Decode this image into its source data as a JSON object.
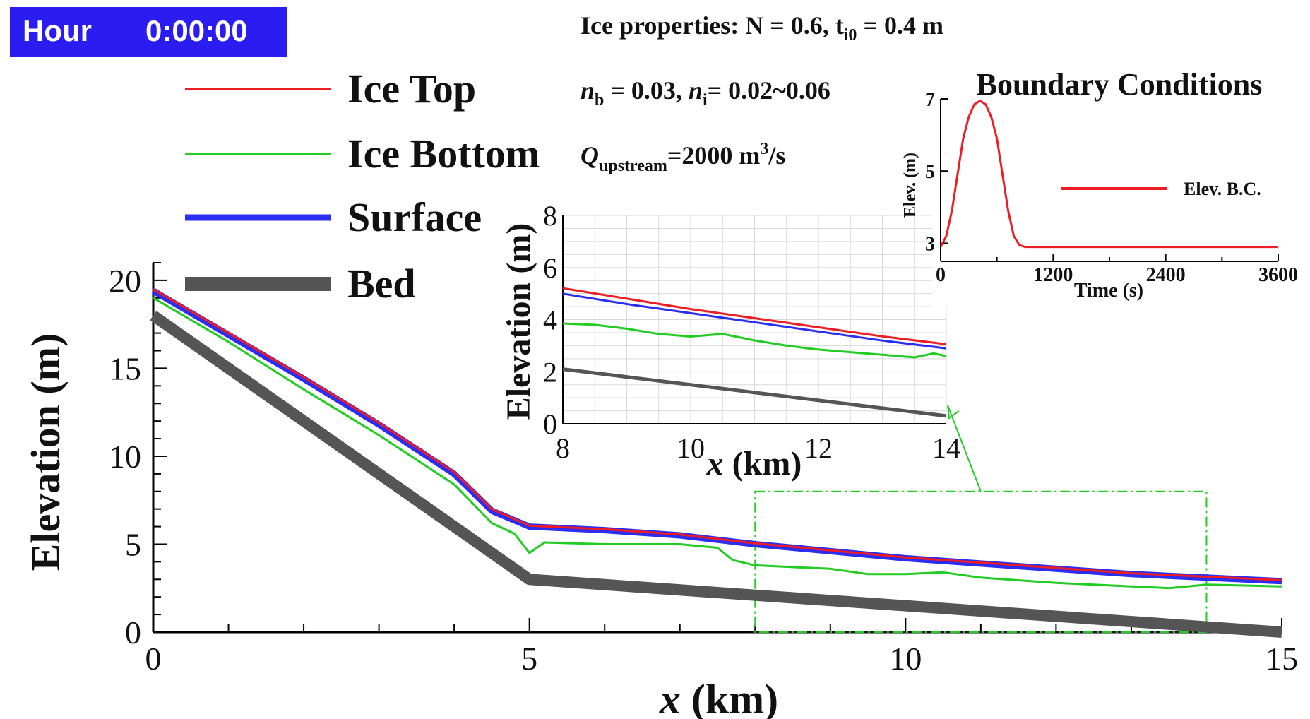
{
  "timer": {
    "label": "Hour",
    "value": "0:00:00",
    "bg_color": "#2b1cf2"
  },
  "annotations": {
    "line1": {
      "pre": "Ice properties: N = 0.6, t",
      "sub": "i0",
      "post": " = 0.4 m"
    },
    "line2": {
      "n1": "n",
      "n1_sub": "b",
      "mid": " = 0.03, ",
      "n2": "n",
      "n2_sub": "i",
      "post": "= 0.02~0.06"
    },
    "line3": {
      "q": "Q",
      "q_sub": "upstream",
      "post": "=2000 m",
      "sup": "3",
      "tail": "/s"
    }
  },
  "legend": [
    {
      "label": "Ice Top",
      "color": "#ee1c24",
      "weight": "thin"
    },
    {
      "label": "Ice Bottom",
      "color": "#22cc22",
      "weight": "thin"
    },
    {
      "label": "Surface",
      "color": "#2b2ef0",
      "weight": "medium"
    },
    {
      "label": "Bed",
      "color": "#555555",
      "weight": "thick"
    }
  ],
  "chart_data": [
    {
      "id": "main",
      "type": "line",
      "xlabel_var": "x",
      "xlabel_unit": " (km)",
      "ylabel": "Elevation (m)",
      "xlim": [
        0,
        15
      ],
      "ylim": [
        0,
        21
      ],
      "xticks": [
        0,
        5,
        10,
        15
      ],
      "yticks": [
        0,
        5,
        10,
        15,
        20
      ],
      "series": [
        {
          "name": "Bed",
          "x": [
            0,
            5,
            15
          ],
          "y": [
            18,
            3,
            0
          ]
        },
        {
          "name": "Surface",
          "x": [
            0,
            1,
            2,
            3,
            4,
            4.5,
            5,
            6,
            7,
            8,
            9,
            10,
            11,
            12,
            13,
            14,
            15
          ],
          "y": [
            19.4,
            16.9,
            14.4,
            11.8,
            9.0,
            6.9,
            6.0,
            5.8,
            5.5,
            5.0,
            4.6,
            4.2,
            3.9,
            3.6,
            3.3,
            3.1,
            2.9
          ]
        },
        {
          "name": "Ice Top",
          "x": [
            0,
            1,
            2,
            3,
            4,
            4.5,
            5,
            6,
            7,
            8,
            9,
            10,
            11,
            12,
            13,
            14,
            15
          ],
          "y": [
            19.5,
            17.0,
            14.5,
            11.9,
            9.1,
            7.0,
            6.05,
            5.85,
            5.55,
            5.05,
            4.65,
            4.25,
            3.95,
            3.65,
            3.35,
            3.15,
            2.95
          ]
        },
        {
          "name": "Ice Bottom",
          "x": [
            0,
            1,
            2,
            3,
            4,
            4.5,
            4.8,
            5.0,
            5.2,
            6,
            7,
            7.5,
            7.7,
            8,
            9,
            9.5,
            10,
            10.5,
            11,
            12,
            13,
            13.5,
            14,
            15
          ],
          "y": [
            19.0,
            16.5,
            13.8,
            11.2,
            8.4,
            6.2,
            5.6,
            4.5,
            5.1,
            5.0,
            5.0,
            4.8,
            4.1,
            3.8,
            3.6,
            3.3,
            3.3,
            3.4,
            3.1,
            2.8,
            2.6,
            2.5,
            2.7,
            2.6
          ]
        }
      ],
      "zoom_box": {
        "x": [
          8,
          14
        ],
        "y": [
          0,
          8
        ]
      }
    },
    {
      "id": "inset",
      "type": "line",
      "xlabel_var": "x",
      "xlabel_unit": " (km)",
      "ylabel": "Elevation (m)",
      "xlim": [
        8,
        14
      ],
      "ylim": [
        0,
        8
      ],
      "xticks": [
        8,
        10,
        12,
        14
      ],
      "yticks": [
        0,
        2,
        4,
        6,
        8
      ],
      "series": [
        {
          "name": "Bed",
          "x": [
            8,
            14
          ],
          "y": [
            2.1,
            0.3
          ]
        },
        {
          "name": "Ice Top",
          "x": [
            8,
            9,
            10,
            11,
            12,
            13,
            14
          ],
          "y": [
            5.15,
            4.75,
            4.35,
            4.0,
            3.65,
            3.3,
            3.0
          ]
        },
        {
          "name": "Surface",
          "x": [
            8,
            9,
            10,
            11,
            12,
            13,
            14
          ],
          "y": [
            5.05,
            4.65,
            4.3,
            3.95,
            3.6,
            3.25,
            2.95
          ]
        },
        {
          "name": "Ice Bottom",
          "x": [
            8,
            8.5,
            9,
            9.5,
            10,
            10.5,
            11,
            11.5,
            12,
            12.5,
            13,
            13.5,
            13.8,
            14
          ],
          "y": [
            3.85,
            3.8,
            3.65,
            3.45,
            3.35,
            3.45,
            3.2,
            3.0,
            2.85,
            2.75,
            2.65,
            2.55,
            2.7,
            2.6
          ]
        }
      ]
    },
    {
      "id": "bc",
      "type": "line",
      "title": "Boundary Conditions",
      "xlabel": "Time (s)",
      "ylabel": "Elev. (m)",
      "xlim": [
        0,
        3600
      ],
      "ylim": [
        2.5,
        7
      ],
      "xticks": [
        0,
        1200,
        2400,
        3600
      ],
      "yticks": [
        3,
        5,
        7
      ],
      "series": [
        {
          "name": "Elev. B.C.",
          "x": [
            0,
            60,
            120,
            180,
            240,
            300,
            360,
            420,
            480,
            540,
            600,
            660,
            720,
            780,
            840,
            900,
            960,
            1020,
            3600
          ],
          "y": [
            2.9,
            3.2,
            3.9,
            4.9,
            5.9,
            6.5,
            6.85,
            6.95,
            6.85,
            6.5,
            5.9,
            4.9,
            3.9,
            3.2,
            2.95,
            2.9,
            2.9,
            2.9,
            2.9
          ]
        }
      ]
    }
  ],
  "series_colors": {
    "Bed": "#555555",
    "Surface": "#2b2ef0",
    "Ice Top": "#ee1c24",
    "Ice Bottom": "#22cc22",
    "Elev. B.C.": "#ee1c24"
  }
}
